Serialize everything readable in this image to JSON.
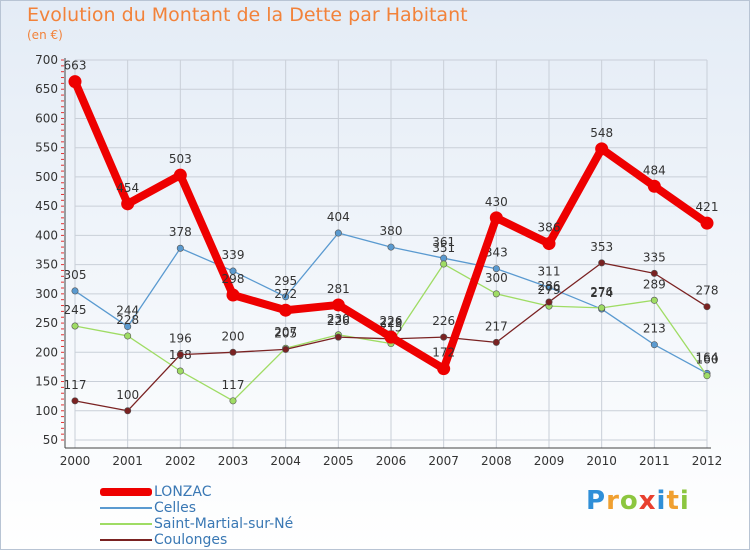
{
  "header": {
    "title": "Evolution du Montant de la Dette par Habitant",
    "unit": "(en €)"
  },
  "brand": {
    "logo_text": "Proxiti",
    "letter_colors": [
      "#2f8fd8",
      "#f0a030",
      "#8cc63f",
      "#e8402f",
      "#2f8fd8",
      "#f0a030",
      "#8cc63f"
    ]
  },
  "colors": {
    "background_top": "#e4ecf6",
    "background_bottom": "#ffffff",
    "grid": "#c9cfd8",
    "axis": "#444444",
    "tick_red": "#e63232",
    "label_text": "#333333"
  },
  "chart_data": {
    "type": "line",
    "x": [
      "2000",
      "2001",
      "2002",
      "2003",
      "2004",
      "2005",
      "2006",
      "2007",
      "2008",
      "2009",
      "2010",
      "2011",
      "2012"
    ],
    "ylim": [
      50,
      700
    ],
    "yticks": [
      50,
      100,
      150,
      200,
      250,
      300,
      350,
      400,
      450,
      500,
      550,
      600,
      650,
      700
    ],
    "grid": true,
    "legend_position": "bottom-left",
    "series": [
      {
        "name": "LONZAC",
        "color": "#ee0000",
        "values": [
          663,
          454,
          503,
          298,
          272,
          281,
          226,
          172,
          430,
          386,
          548,
          484,
          421
        ],
        "labels": [
          "663",
          "454",
          "503",
          "298",
          "272",
          "281",
          "226",
          "172",
          "430",
          "386",
          "548",
          "484",
          "421"
        ]
      },
      {
        "name": "Celles",
        "color": "#5a9ad0",
        "values": [
          305,
          244,
          378,
          339,
          295,
          404,
          380,
          361,
          343,
          311,
          274,
          213,
          164
        ],
        "labels": [
          "305",
          "244",
          "378",
          "339",
          "295",
          "404",
          "380",
          "361",
          "343",
          "311",
          "274",
          "213",
          "164"
        ]
      },
      {
        "name": "Saint-Martial-sur-Né",
        "color": "#9fdc64",
        "values": [
          245,
          228,
          168,
          117,
          207,
          230,
          215,
          351,
          300,
          279,
          276,
          289,
          160
        ],
        "labels": [
          "245",
          "228",
          "168",
          "117",
          "207",
          "230",
          "215",
          "351",
          "300",
          "279",
          "276",
          "289",
          "160"
        ]
      },
      {
        "name": "Coulonges",
        "color": "#7a2222",
        "values": [
          117,
          100,
          196,
          200,
          205,
          226,
          223,
          226,
          217,
          286,
          353,
          335,
          278
        ],
        "labels": [
          "117",
          "100",
          "196",
          "200",
          "205",
          "226",
          "223",
          "226",
          "217",
          "286",
          "353",
          "335",
          "278"
        ]
      }
    ]
  }
}
